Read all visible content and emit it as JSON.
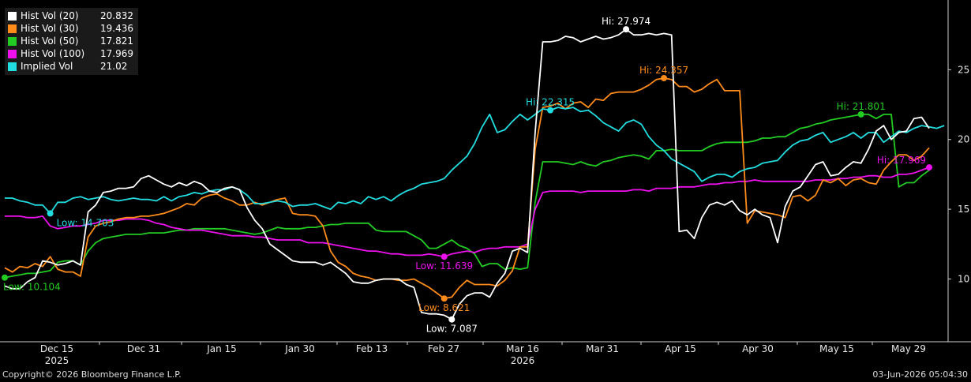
{
  "chart_data": {
    "type": "line",
    "ylim": [
      5.5,
      30.0
    ],
    "y_ticks": [
      10,
      15,
      20,
      25
    ],
    "grid": false,
    "legend_position": "top-left",
    "x_tick_labels": [
      "Dec 15",
      "Dec 31",
      "Jan 15",
      "Jan 30",
      "Feb 13",
      "Feb 27",
      "Mar 16",
      "Mar 31",
      "Apr 15",
      "Apr 30",
      "May 15",
      "May 29"
    ],
    "x_year_labels": [
      {
        "label": "2025",
        "at": "Dec 15"
      },
      {
        "label": "2026",
        "at": "Mar 16"
      }
    ],
    "series": [
      {
        "name": "Hist Vol (20)",
        "last": "20.832",
        "color": "#ffffff",
        "values": [
          9.5,
          9.3,
          9.3,
          9.8,
          10.1,
          11.3,
          11.2,
          11.0,
          11.1,
          11.3,
          11.0,
          14.8,
          15.3,
          16.2,
          16.3,
          16.5,
          16.5,
          16.6,
          17.2,
          17.4,
          17.1,
          16.8,
          16.6,
          16.9,
          16.7,
          17.0,
          16.8,
          16.3,
          16.2,
          16.5,
          16.6,
          16.4,
          15.1,
          14.2,
          13.6,
          12.5,
          12.1,
          11.7,
          11.3,
          11.2,
          11.2,
          11.2,
          11.0,
          11.2,
          10.8,
          10.4,
          9.8,
          9.7,
          9.7,
          9.9,
          10.0,
          10.0,
          10.0,
          9.6,
          9.4,
          7.6,
          7.5,
          7.5,
          7.4,
          7.1,
          8.2,
          8.8,
          9.0,
          9.0,
          8.7,
          9.7,
          10.4,
          12.0,
          12.2,
          11.9,
          20.5,
          27.0,
          27.0,
          27.1,
          27.4,
          27.3,
          27.0,
          27.2,
          27.4,
          27.2,
          27.3,
          27.5,
          27.9,
          27.5,
          27.5,
          27.6,
          27.5,
          27.6,
          27.5,
          13.4,
          13.5,
          12.9,
          14.4,
          15.3,
          15.5,
          15.3,
          15.6,
          14.9,
          14.6,
          15.0,
          14.6,
          14.4,
          12.6,
          15.2,
          16.3,
          16.6,
          17.4,
          18.2,
          18.4,
          17.4,
          17.5,
          18.0,
          18.4,
          18.3,
          19.3,
          20.6,
          21.0,
          20.0,
          20.5,
          20.6,
          21.5,
          21.6,
          20.8
        ]
      },
      {
        "name": "Hist Vol (30)",
        "last": "19.436",
        "color": "#ff8c1a",
        "values": [
          10.8,
          10.5,
          10.9,
          10.8,
          11.1,
          10.9,
          11.6,
          10.7,
          10.5,
          10.5,
          10.2,
          13.0,
          13.8,
          14.0,
          14.1,
          14.3,
          14.4,
          14.4,
          14.5,
          14.5,
          14.6,
          14.7,
          14.9,
          15.1,
          15.4,
          15.3,
          15.8,
          16.0,
          16.1,
          15.8,
          15.6,
          15.3,
          15.3,
          15.5,
          15.3,
          15.5,
          15.7,
          15.8,
          14.7,
          14.6,
          14.6,
          14.5,
          13.8,
          12.0,
          11.2,
          10.9,
          10.4,
          10.2,
          10.1,
          9.9,
          10.0,
          10.0,
          9.9,
          9.9,
          10.0,
          9.7,
          9.4,
          9.0,
          8.6,
          8.7,
          9.4,
          9.9,
          9.6,
          9.6,
          9.6,
          9.5,
          9.9,
          10.6,
          12.3,
          12.3,
          19.3,
          22.3,
          22.4,
          22.6,
          22.2,
          22.6,
          22.7,
          22.3,
          22.9,
          22.8,
          23.3,
          23.4,
          23.4,
          23.4,
          23.6,
          23.9,
          24.3,
          24.4,
          24.3,
          23.8,
          23.8,
          23.4,
          23.6,
          24.0,
          24.3,
          23.5,
          23.5,
          23.5,
          14.0,
          14.9,
          14.8,
          14.7,
          14.6,
          14.4,
          15.9,
          16.0,
          15.6,
          16.0,
          17.1,
          16.9,
          17.2,
          16.7,
          17.1,
          17.2,
          16.9,
          16.8,
          17.8,
          18.4,
          18.9,
          18.9,
          18.5,
          18.8,
          19.4
        ]
      },
      {
        "name": "Hist Vol (50)",
        "last": "17.821",
        "color": "#22cc22",
        "values": [
          10.1,
          10.2,
          10.3,
          10.4,
          10.4,
          10.5,
          10.6,
          11.2,
          11.3,
          11.3,
          11.0,
          12.0,
          12.6,
          12.9,
          13.0,
          13.1,
          13.2,
          13.2,
          13.2,
          13.3,
          13.3,
          13.3,
          13.4,
          13.5,
          13.5,
          13.6,
          13.6,
          13.6,
          13.6,
          13.6,
          13.5,
          13.4,
          13.3,
          13.2,
          13.3,
          13.5,
          13.7,
          13.6,
          13.6,
          13.6,
          13.7,
          13.7,
          13.8,
          13.9,
          13.9,
          14.0,
          14.0,
          14.0,
          14.0,
          13.5,
          13.4,
          13.4,
          13.4,
          13.4,
          13.1,
          12.8,
          12.2,
          12.2,
          12.5,
          12.8,
          12.4,
          12.2,
          11.8,
          10.9,
          11.1,
          11.1,
          10.7,
          10.8,
          10.7,
          10.8,
          15.5,
          18.4,
          18.4,
          18.4,
          18.3,
          18.2,
          18.4,
          18.2,
          18.1,
          18.4,
          18.5,
          18.7,
          18.8,
          18.9,
          18.8,
          18.6,
          19.2,
          19.2,
          19.3,
          19.2,
          19.2,
          19.2,
          19.2,
          19.5,
          19.7,
          19.8,
          19.8,
          19.8,
          19.8,
          19.9,
          20.1,
          20.1,
          20.2,
          20.2,
          20.5,
          20.8,
          20.9,
          21.1,
          21.2,
          21.4,
          21.5,
          21.6,
          21.7,
          21.8,
          21.8,
          21.5,
          21.8,
          21.8,
          16.6,
          16.9,
          16.9,
          17.4,
          17.8
        ]
      },
      {
        "name": "Hist Vol (100)",
        "last": "17.969",
        "color": "#ee11ee",
        "values": [
          14.5,
          14.5,
          14.5,
          14.4,
          14.4,
          14.5,
          13.8,
          13.6,
          13.7,
          13.8,
          13.8,
          13.9,
          14.0,
          14.2,
          14.2,
          14.2,
          14.3,
          14.3,
          14.3,
          14.2,
          14.0,
          13.9,
          13.7,
          13.6,
          13.5,
          13.5,
          13.5,
          13.4,
          13.3,
          13.2,
          13.1,
          13.1,
          13.1,
          13.0,
          13.0,
          12.9,
          12.8,
          12.8,
          12.8,
          12.8,
          12.6,
          12.6,
          12.6,
          12.5,
          12.4,
          12.3,
          12.2,
          12.1,
          12.0,
          12.0,
          11.9,
          11.8,
          11.8,
          11.7,
          11.7,
          11.7,
          11.8,
          11.7,
          11.6,
          11.8,
          11.9,
          12.0,
          11.9,
          12.1,
          12.2,
          12.2,
          12.3,
          12.3,
          12.3,
          12.5,
          15.0,
          16.2,
          16.3,
          16.3,
          16.3,
          16.3,
          16.2,
          16.3,
          16.3,
          16.3,
          16.3,
          16.3,
          16.3,
          16.4,
          16.4,
          16.3,
          16.5,
          16.5,
          16.5,
          16.6,
          16.6,
          16.6,
          16.7,
          16.8,
          16.8,
          16.9,
          16.9,
          17.0,
          17.0,
          17.1,
          17.0,
          17.0,
          17.0,
          17.0,
          17.0,
          17.0,
          17.0,
          17.1,
          17.1,
          17.1,
          17.2,
          17.2,
          17.3,
          17.3,
          17.4,
          17.4,
          17.3,
          17.3,
          17.5,
          17.5,
          17.6,
          17.8,
          18.0
        ]
      },
      {
        "name": "Implied Vol",
        "last": "21.02",
        "color": "#22dde0",
        "values": [
          15.8,
          15.8,
          15.6,
          15.5,
          15.3,
          15.3,
          14.7,
          15.5,
          15.5,
          15.8,
          15.9,
          15.7,
          15.8,
          15.9,
          15.7,
          15.6,
          15.7,
          15.8,
          15.7,
          15.7,
          15.6,
          15.9,
          15.6,
          15.9,
          16.0,
          16.2,
          16.1,
          16.3,
          16.4,
          16.4,
          16.6,
          16.4,
          16.0,
          15.4,
          15.4,
          15.5,
          15.6,
          15.5,
          15.2,
          15.3,
          15.3,
          15.4,
          15.2,
          15.0,
          15.5,
          15.4,
          15.6,
          15.4,
          15.9,
          15.7,
          15.9,
          15.6,
          16.0,
          16.3,
          16.5,
          16.8,
          16.9,
          17.0,
          17.2,
          17.8,
          18.3,
          18.8,
          19.7,
          20.9,
          21.8,
          20.5,
          20.7,
          21.3,
          21.8,
          21.4,
          21.8,
          22.2,
          22.1,
          22.3,
          22.2,
          22.3,
          22.0,
          22.1,
          21.7,
          21.2,
          20.9,
          20.6,
          21.2,
          21.4,
          21.1,
          20.2,
          19.6,
          19.2,
          18.6,
          18.3,
          18.0,
          17.7,
          17.0,
          17.3,
          17.5,
          17.5,
          17.3,
          17.7,
          17.9,
          18.0,
          18.3,
          18.4,
          18.5,
          19.1,
          19.6,
          19.9,
          20.0,
          20.3,
          20.5,
          19.8,
          20.0,
          20.2,
          20.5,
          20.1,
          20.5,
          20.5,
          19.8,
          20.2,
          20.6,
          20.5,
          20.8,
          21.0,
          20.9,
          20.8,
          21.0
        ]
      }
    ],
    "annotations": [
      {
        "text": "Low: 10.104",
        "series": 2,
        "index": 0,
        "side": "below-right"
      },
      {
        "text": "Low: 14.703",
        "series": 4,
        "index": 6,
        "side": "below-right"
      },
      {
        "text": "Low: 11.639",
        "series": 3,
        "index": 58,
        "side": "below"
      },
      {
        "text": "Low: 8.621",
        "series": 1,
        "index": 58,
        "side": "below"
      },
      {
        "text": "Low: 7.087",
        "series": 0,
        "index": 59,
        "side": "below"
      },
      {
        "text": "Hi: 22.315",
        "series": 4,
        "index": 72,
        "side": "above"
      },
      {
        "text": "Hi: 27.974",
        "series": 0,
        "index": 82,
        "side": "above"
      },
      {
        "text": "Hi: 24.357",
        "series": 1,
        "index": 87,
        "side": "above"
      },
      {
        "text": "Hi: 21.801",
        "series": 2,
        "index": 113,
        "side": "above"
      },
      {
        "text": "Hi: 17.969",
        "series": 3,
        "index": 122,
        "side": "above-left"
      }
    ]
  },
  "footer": {
    "copyright": "Copyright© 2026 Bloomberg Finance L.P.",
    "timestamp": "03-Jun-2026 05:04:30"
  }
}
